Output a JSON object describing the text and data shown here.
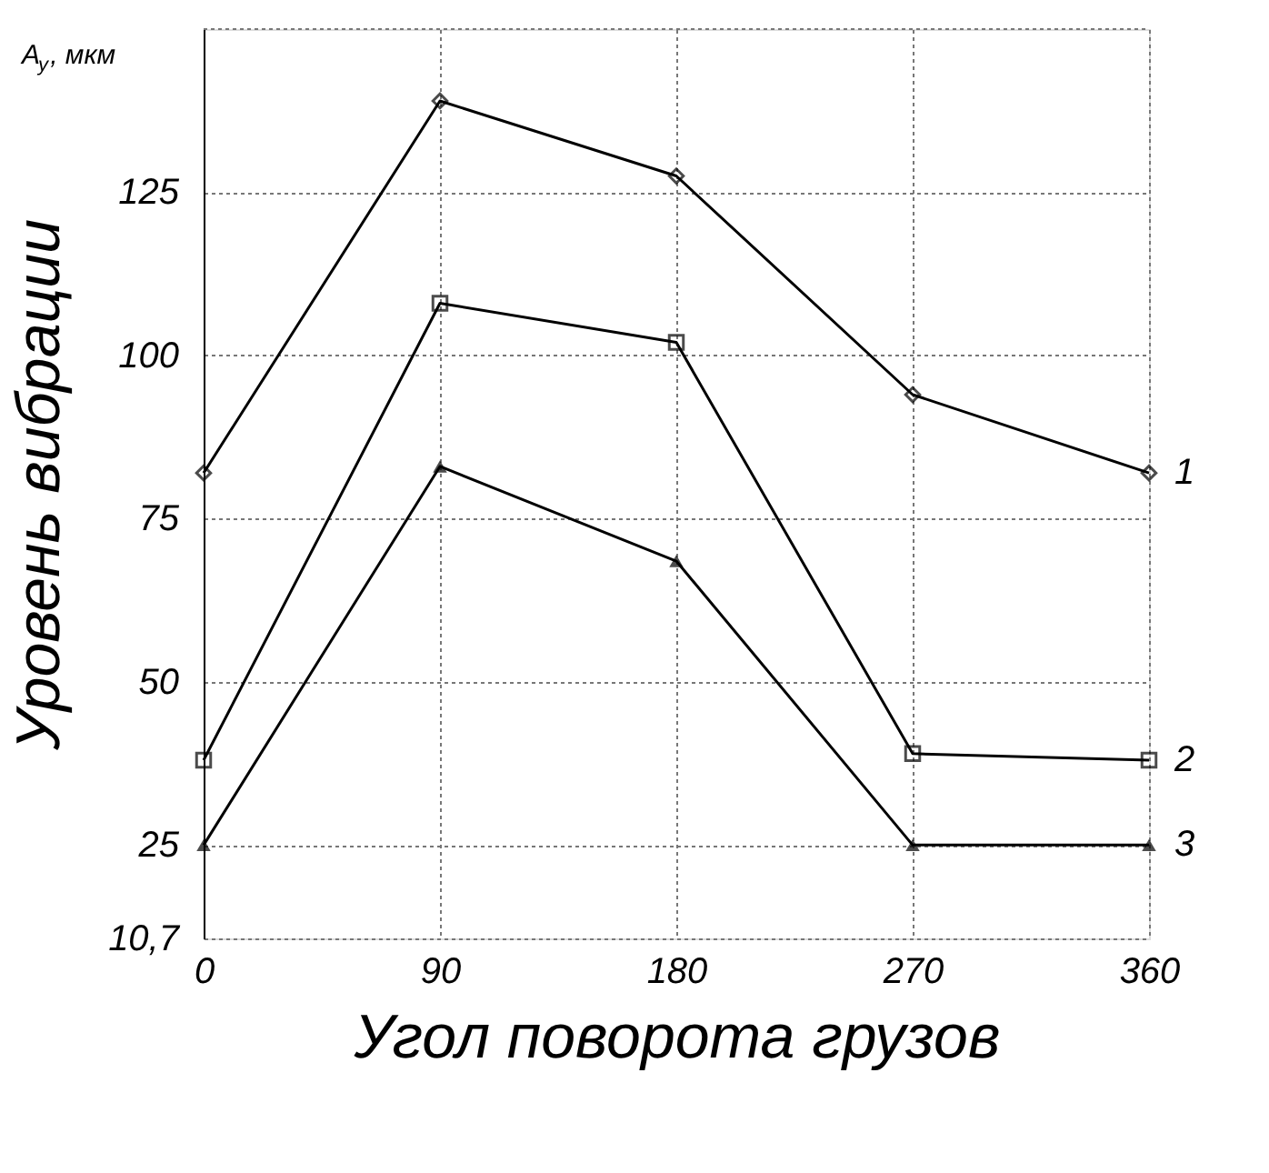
{
  "chart_data": {
    "type": "line",
    "xlabel": "Угол поворота грузов",
    "ylabel": "Уровень вибрации",
    "annotations": [
      "A$_{y}$, мкм"
    ],
    "categories": [
      "0",
      "90",
      "180",
      "270",
      "360"
    ],
    "ylim": [
      10.7,
      150
    ],
    "yticks": [
      {
        "value": 10.7,
        "label": "10,7"
      },
      25,
      50,
      75,
      100,
      125
    ],
    "grid": true,
    "legend": false,
    "line_style": "solid",
    "series": [
      {
        "name": "1",
        "color": "#000000",
        "marker": "diamond",
        "values": [
          82,
          139,
          127.5,
          94,
          82
        ]
      },
      {
        "name": "2",
        "color": "#000000",
        "marker": "square",
        "values": [
          38,
          108,
          102,
          39,
          38
        ]
      },
      {
        "name": "3",
        "color": "#000000",
        "marker": "triangle",
        "values": [
          25,
          83,
          68.5,
          25,
          25
        ]
      }
    ]
  }
}
